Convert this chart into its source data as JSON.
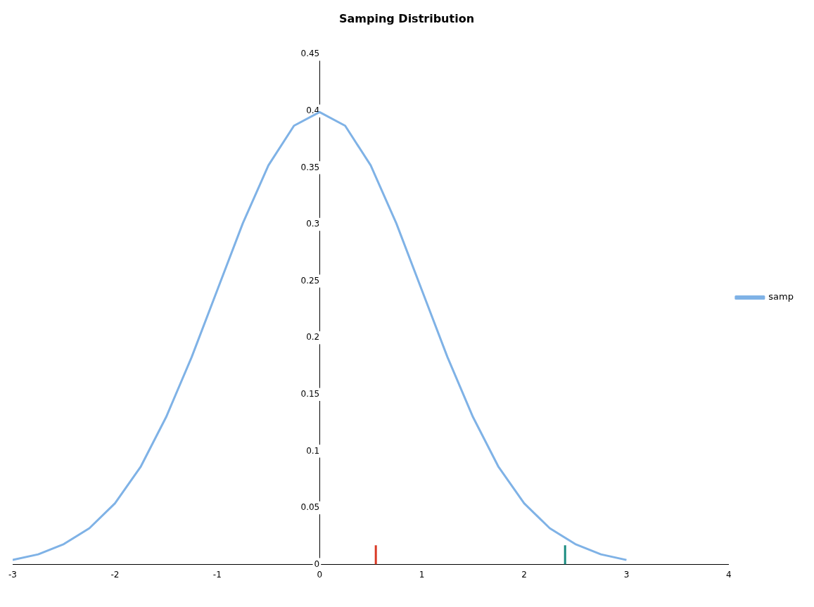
{
  "chart_data": {
    "type": "line",
    "title": "Samping Distribution",
    "xlim": [
      -3,
      4
    ],
    "xticks": [
      -3,
      -2,
      -1,
      0,
      1,
      2,
      3,
      4
    ],
    "ylim": [
      0,
      0.45
    ],
    "yticks": [
      0,
      0.05,
      0.1,
      0.15,
      0.2,
      0.25,
      0.3,
      0.35,
      0.4,
      0.45
    ],
    "grid": false,
    "legend": "right",
    "marker": "none",
    "line_style": "solid",
    "series": [
      {
        "name": "samp",
        "color": "#7fb2e6",
        "x": [
          -3,
          -2.75,
          -2.5,
          -2.25,
          -2,
          -1.75,
          -1.5,
          -1.25,
          -1,
          -0.75,
          -0.5,
          -0.25,
          0,
          0.25,
          0.5,
          0.75,
          1,
          1.25,
          1.5,
          1.75,
          2,
          2.25,
          2.5,
          2.75,
          3
        ],
        "values": [
          0.004,
          0.009,
          0.018,
          0.032,
          0.054,
          0.086,
          0.13,
          0.183,
          0.242,
          0.301,
          0.352,
          0.387,
          0.399,
          0.387,
          0.352,
          0.301,
          0.242,
          0.183,
          0.13,
          0.086,
          0.054,
          0.032,
          0.018,
          0.009,
          0.004
        ]
      },
      {
        "color": "#d93a26",
        "x": [
          0.55,
          0.55
        ],
        "values": [
          0,
          0.017
        ]
      },
      {
        "color": "#1a8c80",
        "x": [
          2.4,
          2.4
        ],
        "values": [
          0,
          0.017
        ]
      }
    ]
  }
}
